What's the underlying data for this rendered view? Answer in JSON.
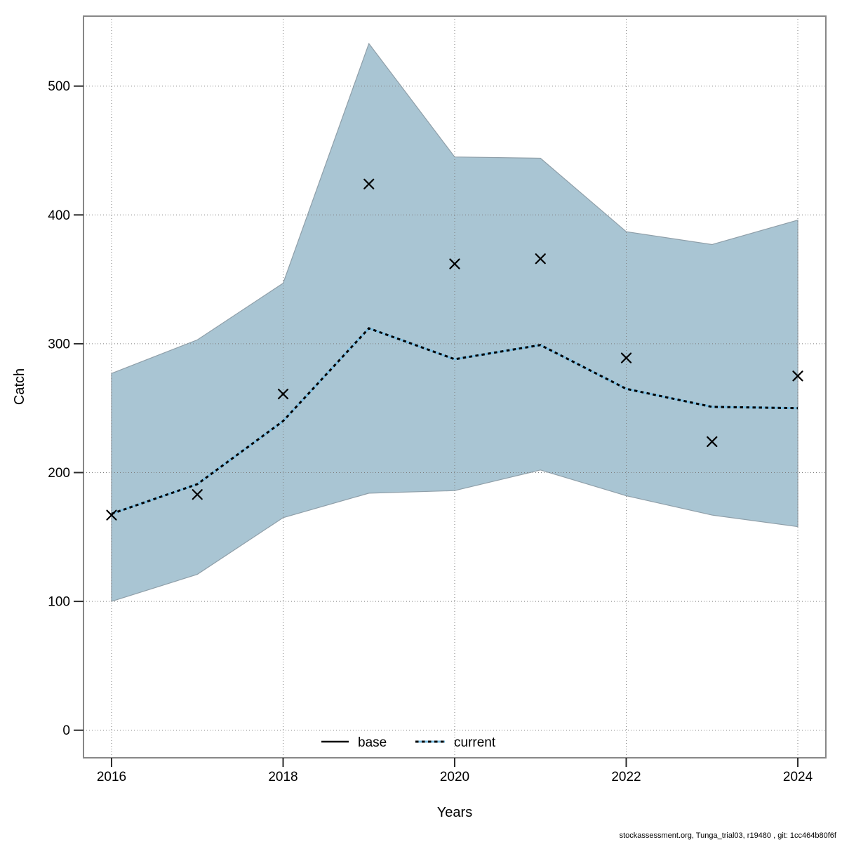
{
  "footer": {
    "text": "stockassessment.org, Tunga_trial03, r19480 , git: 1cc464b80f6f"
  },
  "chart_data": {
    "type": "line+scatter+area",
    "title": "",
    "xlabel": "Years",
    "ylabel": "Catch",
    "x": [
      2016,
      2017,
      2018,
      2019,
      2020,
      2021,
      2022,
      2023,
      2024
    ],
    "series": [
      {
        "name": "observed-catch",
        "type": "scatter",
        "marker": "x",
        "color": "#000000",
        "values": [
          167,
          183,
          261,
          424,
          362,
          366,
          289,
          224,
          275
        ]
      },
      {
        "name": "current",
        "type": "line",
        "line_style": "dotted",
        "color_pattern": [
          "#000000",
          "#7cbfe3"
        ],
        "values": [
          168,
          191,
          240,
          312,
          288,
          299,
          265,
          251,
          250
        ]
      },
      {
        "name": "current-confidence-band",
        "type": "area",
        "fill": "#a9c5d3",
        "low": [
          100,
          121,
          165,
          184,
          186,
          202,
          182,
          167,
          158
        ],
        "high": [
          277,
          303,
          347,
          533,
          445,
          444,
          387,
          377,
          396
        ]
      }
    ],
    "legend": [
      {
        "label": "base",
        "style": "solid",
        "color": "#000000"
      },
      {
        "label": "current",
        "style": "dotted",
        "colors": [
          "#000000",
          "#7cbfe3"
        ]
      }
    ],
    "legend_position": "bottom-center",
    "grid": true,
    "xticks": [
      2016,
      2018,
      2020,
      2022,
      2024
    ],
    "yticks": [
      0,
      100,
      200,
      300,
      400,
      500
    ],
    "xlim": [
      2015.673,
      2024.327
    ],
    "ylim": [
      -21.4,
      554.3
    ],
    "colors": {
      "band": "#a9c5d3",
      "band_edge": "#8f9fa9",
      "current_blue": "#7cbfe3",
      "current_black": "#000000",
      "marker": "#000000",
      "grid": "#7d7d7d",
      "frame": "#878787"
    }
  }
}
